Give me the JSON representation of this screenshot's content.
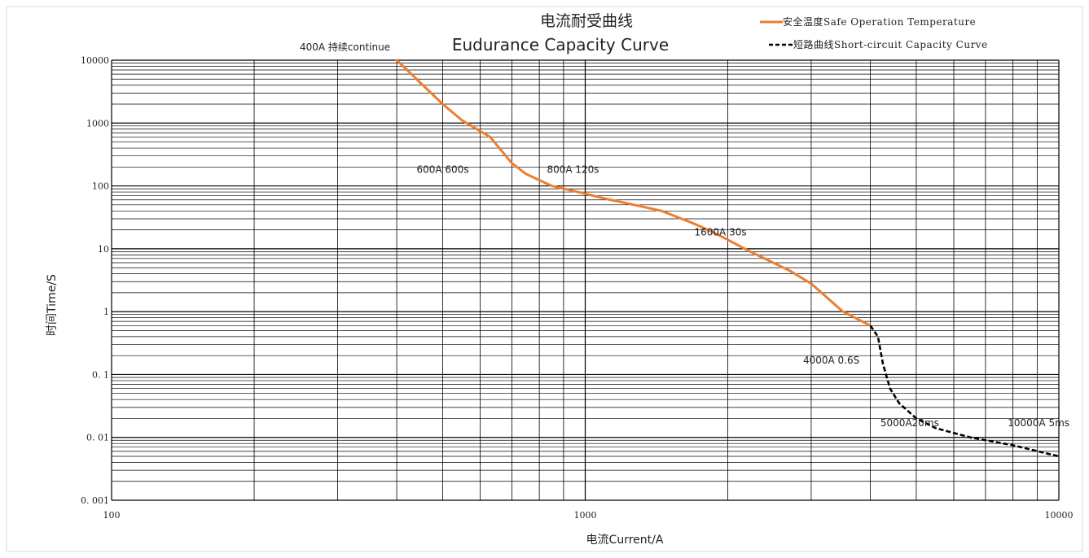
{
  "chart_data": {
    "type": "line",
    "title": "电流耐受曲线",
    "subtitle": "Eudurance Capacity Curve",
    "xlabel": "电流Current/A",
    "ylabel": "时间Time/S",
    "x_scale": "log",
    "y_scale": "log",
    "xlim": [
      100,
      10000
    ],
    "ylim": [
      0.001,
      10000
    ],
    "x_ticks": [
      {
        "value": 100,
        "label": "100"
      },
      {
        "value": 1000,
        "label": "1000"
      },
      {
        "value": 10000,
        "label": "10000"
      }
    ],
    "y_ticks": [
      {
        "value": 10000,
        "label": "10000"
      },
      {
        "value": 1000,
        "label": "1000"
      },
      {
        "value": 100,
        "label": "100"
      },
      {
        "value": 10,
        "label": "10"
      },
      {
        "value": 1,
        "label": "1"
      },
      {
        "value": 0.1,
        "label": "0. 1"
      },
      {
        "value": 0.01,
        "label": "0. 01"
      },
      {
        "value": 0.001,
        "label": "0. 001"
      }
    ],
    "grid": true,
    "legend_position": "top-right",
    "series": [
      {
        "name": "安全温度Safe Operation Temperature",
        "color": "#ED7D31",
        "style": "solid",
        "points": [
          [
            400,
            10000
          ],
          [
            500,
            2000
          ],
          [
            550,
            1100
          ],
          [
            630,
            600
          ],
          [
            700,
            230
          ],
          [
            750,
            155
          ],
          [
            850,
            100
          ],
          [
            1000,
            75
          ],
          [
            1100,
            63
          ],
          [
            1300,
            48
          ],
          [
            1450,
            40
          ],
          [
            1700,
            25
          ],
          [
            1900,
            17
          ],
          [
            2200,
            9.5
          ],
          [
            2700,
            4.5
          ],
          [
            3000,
            2.8
          ],
          [
            3500,
            1.0
          ],
          [
            4000,
            0.6
          ]
        ]
      },
      {
        "name": "短路曲线Short-circuit Capacity Curve",
        "color": "#000000",
        "style": "dashed",
        "points": [
          [
            4000,
            0.6
          ],
          [
            4150,
            0.4
          ],
          [
            4250,
            0.15
          ],
          [
            4400,
            0.06
          ],
          [
            4600,
            0.035
          ],
          [
            5000,
            0.02
          ],
          [
            5500,
            0.014
          ],
          [
            6500,
            0.01
          ],
          [
            8000,
            0.0075
          ],
          [
            10000,
            0.005
          ]
        ]
      }
    ],
    "annotations": [
      {
        "text": "400A 持续continue",
        "x": 400,
        "y": 10000
      },
      {
        "text": "600A  600s",
        "x": 600,
        "y": 140
      },
      {
        "text": "800A 120s",
        "x": 830,
        "y": 140
      },
      {
        "text": "1600A 30s",
        "x": 1700,
        "y": 14
      },
      {
        "text": "4000A 0.6S",
        "x": 3000,
        "y": 0.15
      },
      {
        "text": "5000A20ms",
        "x": 4200,
        "y": 0.015
      },
      {
        "text": "10000A 5ms",
        "x": 7800,
        "y": 0.015
      }
    ]
  }
}
